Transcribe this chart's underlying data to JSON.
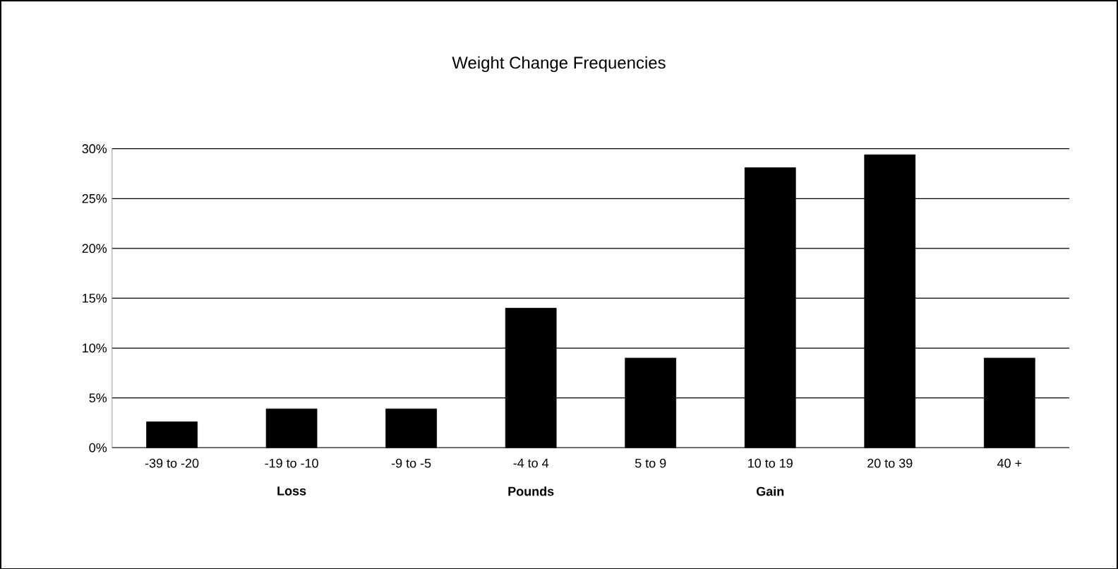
{
  "chart_data": {
    "type": "bar",
    "title": "Weight Change Frequencies",
    "categories": [
      "-39 to -20",
      "-19 to -10",
      "-9 to -5",
      "-4 to 4",
      "5 to 9",
      "10 to 19",
      "20 to 39",
      "40 +"
    ],
    "values": [
      2.6,
      3.9,
      3.9,
      14.0,
      9.0,
      28.1,
      29.4,
      9.0
    ],
    "color": "#000000",
    "ylim": [
      0,
      30
    ],
    "yticks": [
      {
        "value": 0,
        "label": "0%"
      },
      {
        "value": 5,
        "label": "5%"
      },
      {
        "value": 10,
        "label": "10%"
      },
      {
        "value": 15,
        "label": "15%"
      },
      {
        "value": 20,
        "label": "20%"
      },
      {
        "value": 25,
        "label": "25%"
      },
      {
        "value": 30,
        "label": "30%"
      }
    ],
    "grid": "y",
    "annotations": [
      "Loss",
      "Pounds",
      "Gain"
    ]
  }
}
